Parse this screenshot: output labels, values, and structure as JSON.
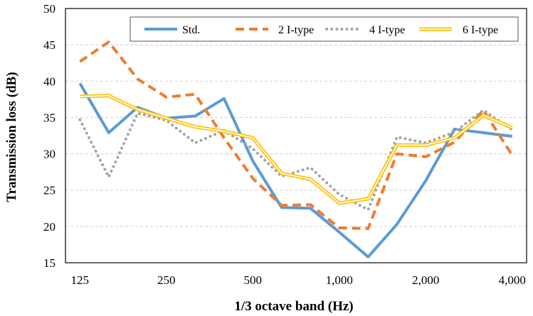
{
  "chart_data": {
    "type": "line",
    "xlabel": "1/3 octave band (Hz)",
    "ylabel": "Transmission loss (dB)",
    "ylim": [
      15,
      50
    ],
    "yticks": [
      15,
      20,
      25,
      30,
      35,
      40,
      45,
      50
    ],
    "x": [
      125,
      160,
      200,
      250,
      315,
      400,
      500,
      630,
      800,
      1000,
      1250,
      1600,
      2000,
      2500,
      3150,
      4000
    ],
    "x_tick_labels": [
      "125",
      "250",
      "500",
      "1,000",
      "2,000",
      "4,000"
    ],
    "grid": true,
    "legend_position": "top-right",
    "series": [
      {
        "name": "Std.",
        "color": "#5b9bd5",
        "style": "solid",
        "values": [
          39.7,
          32.9,
          36.4,
          34.9,
          35.2,
          37.6,
          29.0,
          22.6,
          22.5,
          19.2,
          15.8,
          20.3,
          26.3,
          33.4,
          32.9,
          32.4
        ]
      },
      {
        "name": "2 I-type",
        "color": "#ed7d31",
        "style": "dashed",
        "values": [
          42.7,
          45.4,
          40.3,
          37.8,
          38.2,
          32.2,
          26.6,
          22.9,
          23.0,
          19.8,
          19.7,
          30.0,
          29.6,
          31.6,
          36.0,
          29.8
        ]
      },
      {
        "name": "4 I-type",
        "color": "#a5a5a5",
        "style": "dotted",
        "values": [
          34.7,
          26.8,
          35.6,
          34.6,
          31.5,
          33.2,
          30.7,
          26.9,
          28.1,
          24.4,
          22.3,
          32.3,
          31.5,
          33.0,
          36.0,
          33.3
        ]
      },
      {
        "name": "6 I-type",
        "color": "#ffc000",
        "style": "double",
        "values": [
          37.9,
          38.0,
          36.1,
          34.9,
          33.7,
          33.1,
          32.2,
          27.3,
          26.5,
          23.2,
          23.8,
          31.2,
          31.2,
          32.2,
          35.3,
          33.6
        ]
      }
    ]
  }
}
